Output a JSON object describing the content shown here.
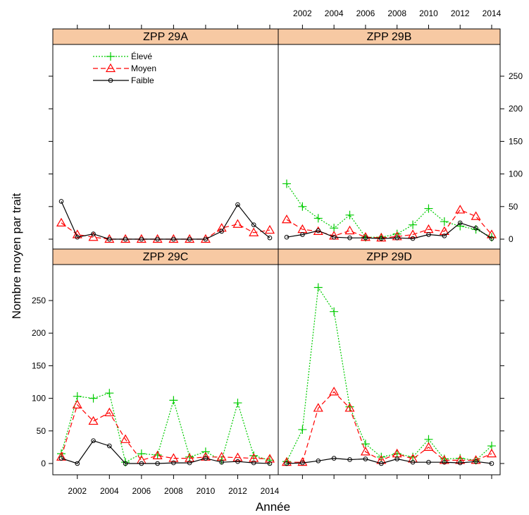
{
  "chart_data": {
    "type": "line",
    "xlabel": "Année",
    "ylabel": "Nombre moyen par trait",
    "x_ticks": [
      2002,
      2004,
      2006,
      2008,
      2010,
      2012,
      2014
    ],
    "y_ticks": [
      0,
      50,
      100,
      150,
      200,
      250
    ],
    "xlim": [
      2001,
      2014
    ],
    "ylim": [
      0,
      300
    ],
    "legend": {
      "placement": "top-left of panel ZPP 29A",
      "entries": [
        {
          "label": "Élevé",
          "color": "#00cc00",
          "marker": "plus",
          "dash": "dotted"
        },
        {
          "label": "Moyen",
          "color": "#ff0000",
          "marker": "triangle",
          "dash": "dashed"
        },
        {
          "label": "Faible",
          "color": "#000000",
          "marker": "circle",
          "dash": "solid"
        }
      ]
    },
    "years": [
      2001,
      2002,
      2003,
      2004,
      2005,
      2006,
      2007,
      2008,
      2009,
      2010,
      2011,
      2012,
      2013,
      2014
    ],
    "panels": [
      {
        "title": "ZPP 29A",
        "series": [
          {
            "name": "Moyen",
            "values": [
              25,
              7,
              3,
              0,
              0,
              0,
              0,
              0,
              0,
              0,
              17,
              23,
              10,
              14
            ]
          },
          {
            "name": "Faible",
            "values": [
              58,
              3,
              8,
              0,
              0,
              0,
              0,
              0,
              0,
              0,
              12,
              53,
              22,
              2
            ]
          }
        ]
      },
      {
        "title": "ZPP 29B",
        "series": [
          {
            "name": "Élevé",
            "values": [
              85,
              50,
              32,
              17,
              37,
              3,
              3,
              8,
              22,
              47,
              27,
              20,
              15,
              3
            ]
          },
          {
            "name": "Moyen",
            "values": [
              30,
              15,
              12,
              5,
              13,
              3,
              2,
              4,
              7,
              15,
              12,
              45,
              35,
              7
            ]
          },
          {
            "name": "Faible",
            "values": [
              3,
              7,
              13,
              3,
              2,
              2,
              1,
              2,
              1,
              7,
              5,
              25,
              17,
              1
            ]
          }
        ]
      },
      {
        "title": "ZPP 29C",
        "series": [
          {
            "name": "Élevé",
            "values": [
              15,
              103,
              100,
              108,
              2,
              15,
              13,
              97,
              10,
              18,
              5,
              93,
              12,
              5
            ]
          },
          {
            "name": "Moyen",
            "values": [
              10,
              90,
              65,
              78,
              37,
              5,
              12,
              8,
              8,
              10,
              10,
              9,
              8,
              7
            ]
          },
          {
            "name": "Faible",
            "values": [
              8,
              0,
              35,
              27,
              0,
              0,
              0,
              1,
              1,
              8,
              2,
              3,
              1,
              0
            ]
          }
        ]
      },
      {
        "title": "ZPP 29D",
        "series": [
          {
            "name": "Élevé",
            "values": [
              3,
              52,
              270,
              233,
              87,
              30,
              10,
              15,
              10,
              37,
              7,
              8,
              5,
              27
            ]
          },
          {
            "name": "Moyen",
            "values": [
              2,
              2,
              85,
              110,
              85,
              18,
              5,
              15,
              7,
              25,
              5,
              5,
              5,
              15
            ]
          },
          {
            "name": "Faible",
            "values": [
              0,
              1,
              4,
              8,
              6,
              7,
              0,
              7,
              2,
              2,
              2,
              1,
              3,
              0
            ]
          }
        ]
      }
    ]
  }
}
